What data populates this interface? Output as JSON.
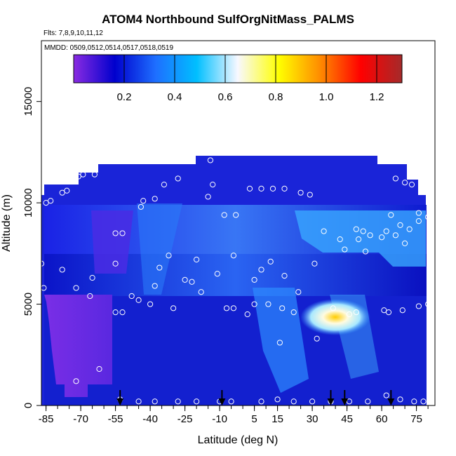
{
  "header": {
    "title": "ATOM4 Northbound SulfOrgNitMass_PALMS",
    "flights": "Flts: 7,8,9,10,11,12",
    "dates": "MMDD: 0509,0512,0514,0517,0518,0519"
  },
  "chart_data": {
    "type": "heatmap",
    "title": "ATOM4 Northbound SulfOrgNitMass_PALMS",
    "xlabel": "Latitude (deg N)",
    "ylabel": "Altitude (m)",
    "xlim": [
      -87,
      83
    ],
    "ylim": [
      0,
      18000
    ],
    "x_ticks": [
      -85,
      -70,
      -55,
      -40,
      -25,
      -10,
      5,
      15,
      30,
      45,
      60,
      75
    ],
    "y_ticks": [
      0,
      5000,
      10000,
      15000
    ],
    "colorbar": {
      "range": [
        0,
        1.3
      ],
      "ticks": [
        0.2,
        0.4,
        0.6,
        0.8,
        1.0,
        1.2
      ],
      "tick_labels": [
        "0.2",
        "0.4",
        "0.6",
        "0.8",
        "1.0",
        "1.2"
      ],
      "colors": [
        "#8a2be2",
        "#0000cd",
        "#1e6fff",
        "#00bfff",
        "#f8f8ff",
        "#ffff00",
        "#ff8c00",
        "#ff0000",
        "#a52a2a"
      ]
    },
    "arrows_latitude": [
      -53,
      -9,
      38,
      44,
      64
    ],
    "sample_points": [
      [
        -85,
        10000
      ],
      [
        -83,
        10100
      ],
      [
        -78,
        10500
      ],
      [
        -76,
        10600
      ],
      [
        -73,
        11100
      ],
      [
        -71,
        11300
      ],
      [
        -69,
        11400
      ],
      [
        -64,
        11400
      ],
      [
        -55,
        8500
      ],
      [
        -52,
        8500
      ],
      [
        -44,
        9800
      ],
      [
        -43,
        10100
      ],
      [
        -38,
        10200
      ],
      [
        -34,
        10900
      ],
      [
        -28,
        11200
      ],
      [
        -14,
        12100
      ],
      [
        -13,
        10900
      ],
      [
        -15,
        10300
      ],
      [
        -8,
        9400
      ],
      [
        -3,
        9400
      ],
      [
        3,
        10700
      ],
      [
        8,
        10700
      ],
      [
        13,
        10700
      ],
      [
        18,
        10700
      ],
      [
        25,
        10500
      ],
      [
        29,
        10400
      ],
      [
        -87,
        7000
      ],
      [
        -78,
        6700
      ],
      [
        -65,
        6300
      ],
      [
        -55,
        7000
      ],
      [
        -36,
        6800
      ],
      [
        -32,
        7400
      ],
      [
        -25,
        6200
      ],
      [
        -22,
        6100
      ],
      [
        -20,
        7200
      ],
      [
        -11,
        6500
      ],
      [
        -4,
        7400
      ],
      [
        5,
        6200
      ],
      [
        8,
        6700
      ],
      [
        12,
        7100
      ],
      [
        18,
        6400
      ],
      [
        24,
        5600
      ],
      [
        31,
        7000
      ],
      [
        35,
        8600
      ],
      [
        42,
        8200
      ],
      [
        44,
        7700
      ],
      [
        49,
        8700
      ],
      [
        52,
        8600
      ],
      [
        55,
        8400
      ],
      [
        60,
        8300
      ],
      [
        62,
        8600
      ],
      [
        66,
        8400
      ],
      [
        70,
        8000
      ],
      [
        72,
        8700
      ],
      [
        76,
        9100
      ],
      [
        80,
        9300
      ],
      [
        -86,
        5800
      ],
      [
        -72,
        5800
      ],
      [
        -66,
        5400
      ],
      [
        -55,
        4600
      ],
      [
        -52,
        4600
      ],
      [
        -48,
        5400
      ],
      [
        -45,
        5200
      ],
      [
        -40,
        5000
      ],
      [
        -38,
        5900
      ],
      [
        -30,
        4800
      ],
      [
        -18,
        5600
      ],
      [
        -7,
        4800
      ],
      [
        -4,
        4800
      ],
      [
        2,
        4500
      ],
      [
        5,
        5000
      ],
      [
        11,
        5000
      ],
      [
        17,
        4800
      ],
      [
        22,
        4600
      ],
      [
        39,
        4800
      ],
      [
        46,
        4500
      ],
      [
        49,
        4600
      ],
      [
        61,
        4700
      ],
      [
        63,
        4600
      ],
      [
        69,
        4700
      ],
      [
        76,
        4900
      ],
      [
        80,
        5000
      ],
      [
        16,
        3100
      ],
      [
        32,
        3300
      ],
      [
        -72,
        1200
      ],
      [
        -62,
        1800
      ],
      [
        -53,
        300
      ],
      [
        -45,
        200
      ],
      [
        -38,
        200
      ],
      [
        -28,
        200
      ],
      [
        -20,
        200
      ],
      [
        -10,
        200
      ],
      [
        -5,
        200
      ],
      [
        8,
        200
      ],
      [
        15,
        300
      ],
      [
        22,
        200
      ],
      [
        30,
        200
      ],
      [
        38,
        200
      ],
      [
        46,
        200
      ],
      [
        54,
        200
      ],
      [
        62,
        500
      ],
      [
        68,
        300
      ],
      [
        74,
        200
      ],
      [
        78,
        200
      ],
      [
        66,
        11200
      ],
      [
        70,
        11000
      ],
      [
        73,
        10900
      ],
      [
        76,
        9500
      ],
      [
        64,
        9400
      ],
      [
        68,
        8900
      ],
      [
        50,
        8200
      ],
      [
        53,
        7600
      ]
    ]
  }
}
